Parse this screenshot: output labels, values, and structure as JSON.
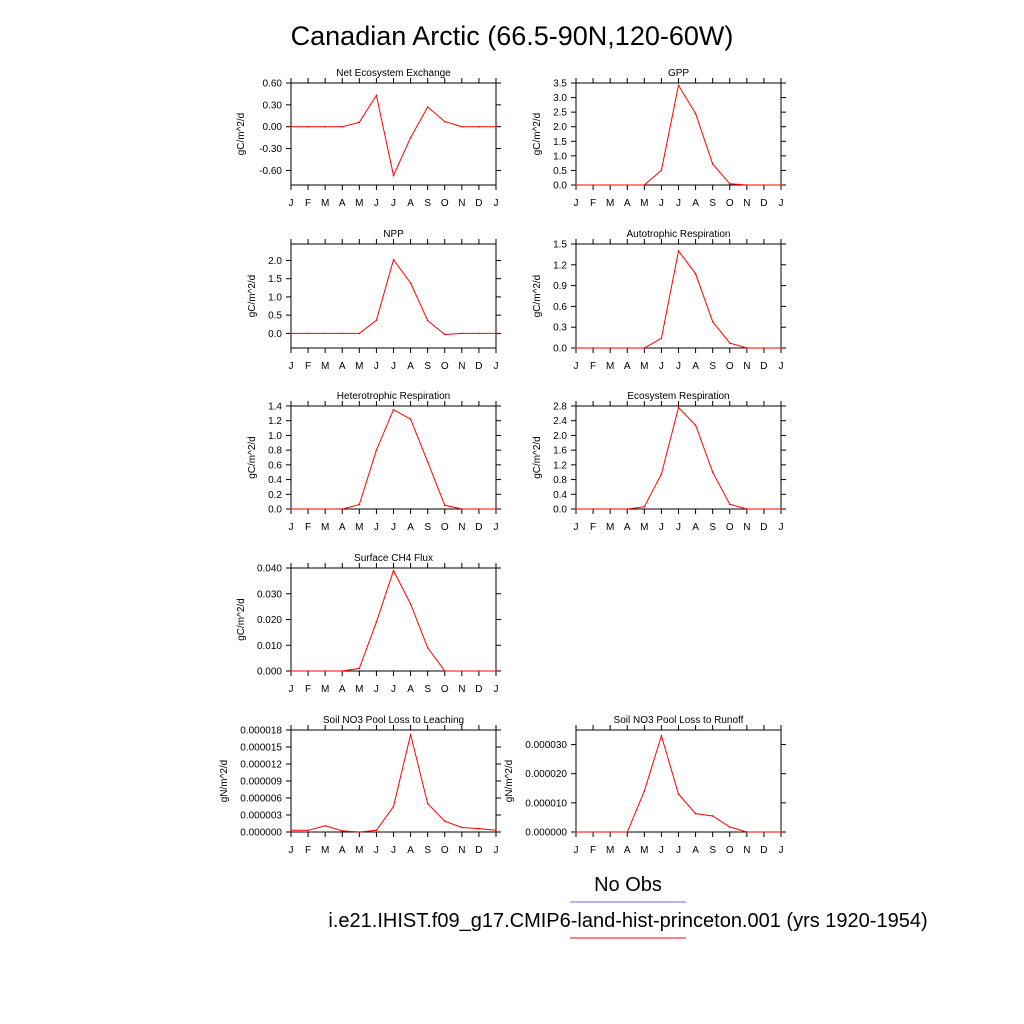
{
  "figure": {
    "title": "Canadian Arctic (66.5-90N,120-60W)",
    "months": [
      "J",
      "F",
      "M",
      "A",
      "M",
      "J",
      "J",
      "A",
      "S",
      "O",
      "N",
      "D",
      "J"
    ],
    "line_color": "#ff0000",
    "obs_color": "#6b6bff"
  },
  "legend": {
    "obs_label": "No Obs",
    "model_label": "i.e21.IHIST.f09_g17.CMIP6-land-hist-princeton.001 (yrs 1920-1954)"
  },
  "chart_data": [
    {
      "type": "line",
      "title": "Net Ecosystem Exchange",
      "ylabel": "gC/m^2/d",
      "ylim": [
        -0.8,
        0.6
      ],
      "yticks": [
        0.6,
        0.3,
        0.0,
        -0.3,
        -0.6
      ],
      "yticklabels": [
        "0.60",
        "0.30",
        "0.00",
        "-0.30",
        "-0.60"
      ],
      "values": [
        0.0,
        0.0,
        0.0,
        0.0,
        0.06,
        0.43,
        -0.67,
        -0.15,
        0.27,
        0.07,
        0.0,
        0.0,
        0.0
      ]
    },
    {
      "type": "line",
      "title": "GPP",
      "ylabel": "gC/m^2/d",
      "ylim": [
        0,
        3.5
      ],
      "yticks": [
        3.5,
        3.0,
        2.5,
        2.0,
        1.5,
        1.0,
        0.5,
        0.0
      ],
      "yticklabels": [
        "3.5",
        "3.0",
        "2.5",
        "2.0",
        "1.5",
        "1.0",
        "0.5",
        "0.0"
      ],
      "values": [
        0.0,
        0.0,
        0.0,
        0.0,
        0.0,
        0.5,
        3.42,
        2.45,
        0.72,
        0.04,
        0.0,
        0.0,
        0.0
      ]
    },
    {
      "type": "line",
      "title": "NPP",
      "ylabel": "gC/m^2/d",
      "ylim": [
        -0.4,
        2.45
      ],
      "yticks": [
        2.0,
        1.5,
        1.0,
        0.5,
        0.0
      ],
      "yticklabels": [
        "2.0",
        "1.5",
        "1.0",
        "0.5",
        "0.0"
      ],
      "values": [
        0.0,
        0.0,
        0.0,
        0.0,
        0.0,
        0.36,
        2.02,
        1.38,
        0.35,
        -0.03,
        0.0,
        0.0,
        0.0
      ]
    },
    {
      "type": "line",
      "title": "Autotrophic Respiration",
      "ylabel": "gC/m^2/d",
      "ylim": [
        0,
        1.5
      ],
      "yticks": [
        1.5,
        1.2,
        0.9,
        0.6,
        0.3,
        0.0
      ],
      "yticklabels": [
        "1.5",
        "1.2",
        "0.9",
        "0.6",
        "0.3",
        "0.0"
      ],
      "values": [
        0.0,
        0.0,
        0.0,
        0.0,
        0.0,
        0.14,
        1.4,
        1.07,
        0.38,
        0.07,
        0.0,
        0.0,
        0.0
      ]
    },
    {
      "type": "line",
      "title": "Heterotrophic Respiration",
      "ylabel": "gC/m^2/d",
      "ylim": [
        0,
        1.4
      ],
      "yticks": [
        1.4,
        1.2,
        1.0,
        0.8,
        0.6,
        0.4,
        0.2,
        0.0
      ],
      "yticklabels": [
        "1.4",
        "1.2",
        "1.0",
        "0.8",
        "0.6",
        "0.4",
        "0.2",
        "0.0"
      ],
      "values": [
        0.0,
        0.0,
        0.0,
        0.0,
        0.06,
        0.8,
        1.35,
        1.22,
        0.64,
        0.05,
        0.0,
        0.0,
        0.0
      ]
    },
    {
      "type": "line",
      "title": "Ecosystem Respiration",
      "ylabel": "gC/m^2/d",
      "ylim": [
        0,
        2.8
      ],
      "yticks": [
        2.8,
        2.4,
        2.0,
        1.6,
        1.2,
        0.8,
        0.4,
        0.0
      ],
      "yticklabels": [
        "2.8",
        "2.4",
        "2.0",
        "1.6",
        "1.2",
        "0.8",
        "0.4",
        "0.0"
      ],
      "values": [
        0.0,
        0.0,
        0.0,
        0.0,
        0.06,
        0.95,
        2.76,
        2.28,
        1.0,
        0.13,
        0.0,
        0.0,
        0.0
      ]
    },
    {
      "type": "line",
      "title": "Surface CH4 Flux",
      "ylabel": "gC/m^2/d",
      "ylim": [
        0,
        0.04
      ],
      "yticks": [
        0.04,
        0.03,
        0.02,
        0.01,
        0.0
      ],
      "yticklabels": [
        "0.040",
        "0.030",
        "0.020",
        "0.010",
        "0.000"
      ],
      "values": [
        0.0,
        0.0,
        0.0,
        0.0,
        0.001,
        0.019,
        0.039,
        0.026,
        0.009,
        0.0,
        0.0,
        0.0,
        0.0
      ]
    },
    {
      "type": "line",
      "title": "Soil NO3 Pool Loss to Leaching",
      "ylabel": "gN/m^2/d",
      "ylim": [
        0,
        1.8e-05
      ],
      "yticks": [
        1.8e-05,
        1.5e-05,
        1.2e-05,
        9e-06,
        6e-06,
        3e-06,
        0.0
      ],
      "yticklabels": [
        "0.000018",
        "0.000015",
        "0.000012",
        "0.000009",
        "0.000006",
        "0.000003",
        "0.000000"
      ],
      "values": [
        3e-07,
        3e-07,
        1.1e-06,
        2e-07,
        0.0,
        3e-07,
        4.5e-06,
        1.72e-05,
        5e-06,
        1.9e-06,
        8e-07,
        6e-07,
        3e-07
      ]
    },
    {
      "type": "line",
      "title": "Soil NO3 Pool Loss to Runoff",
      "ylabel": "gN/m^2/d",
      "ylim": [
        0,
        3.5e-05
      ],
      "yticks": [
        3e-05,
        2e-05,
        1e-05,
        0.0
      ],
      "yticklabels": [
        "0.000030",
        "0.000020",
        "0.000010",
        "0.000000"
      ],
      "values": [
        0.0,
        0.0,
        0.0,
        0.0,
        1.4e-05,
        3.3e-05,
        1.3e-05,
        6.3e-06,
        5.5e-06,
        1.7e-06,
        0.0,
        0.0,
        0.0
      ]
    }
  ]
}
